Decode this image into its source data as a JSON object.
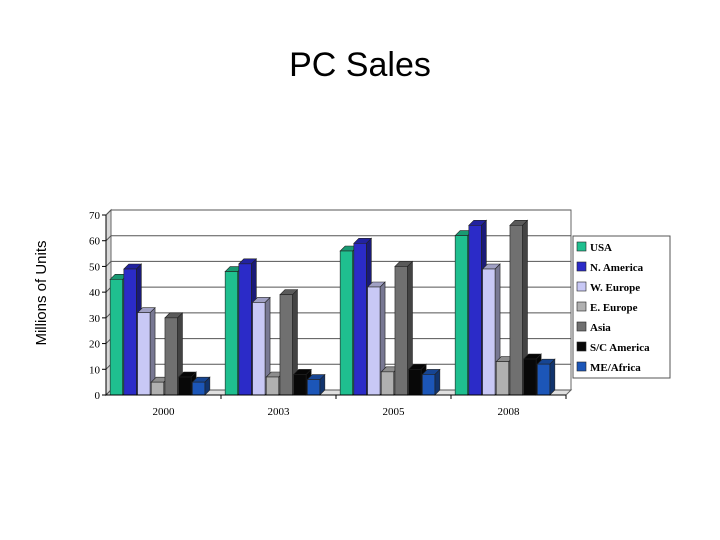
{
  "chart_data": {
    "type": "bar",
    "title": "PC Sales",
    "ylabel": "Millions of Units",
    "xlabel": "",
    "categories": [
      "2000",
      "2003",
      "2005",
      "2008"
    ],
    "ylim": [
      0,
      70
    ],
    "yticks": [
      0,
      10,
      20,
      30,
      40,
      50,
      60,
      70
    ],
    "grid": true,
    "legend_position": "right",
    "series": [
      {
        "name": "USA",
        "color": "#1fbf8f",
        "values": [
          45,
          48,
          56,
          62
        ]
      },
      {
        "name": "N. America",
        "color": "#2b2bc8",
        "values": [
          49,
          51,
          59,
          66
        ]
      },
      {
        "name": "W. Europe",
        "color": "#c8c8f5",
        "values": [
          32,
          36,
          42,
          49
        ]
      },
      {
        "name": "E. Europe",
        "color": "#b0b0b0",
        "values": [
          5,
          7,
          9,
          13
        ]
      },
      {
        "name": "Asia",
        "color": "#707070",
        "values": [
          30,
          39,
          50,
          66
        ]
      },
      {
        "name": "S/C America",
        "color": "#080808",
        "values": [
          7,
          8,
          10,
          14
        ]
      },
      {
        "name": "ME/Africa",
        "color": "#1c56b8",
        "values": [
          5,
          6,
          8,
          12
        ]
      }
    ]
  }
}
